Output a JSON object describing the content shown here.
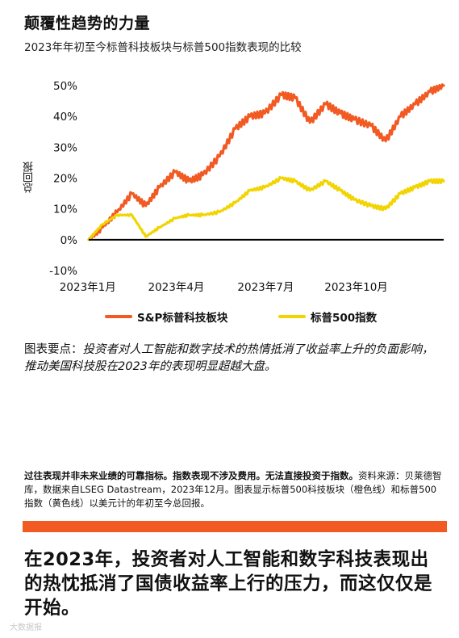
{
  "title": "颠覆性趋势的力量",
  "subtitle": "2023年年初至今标普科技板块与标普500指数表现的比较",
  "takeaway_label": "图表要点：",
  "takeaway_text": "投资者对人工智能和数字技术的热情抵消了收益率上升的负面影响，推动美国科技股在2023年的表现明显超越大盘。",
  "source_bold": "过往表现并非未来业绩的可靠指标。指数表现不涉及费用。无法直接投资于指数。",
  "source_text": "资料来源：贝莱德智库，数据来自LSEG Datastream，2023年12月。图表显示标普500科技板块（橙色线）和标普500指数（黄色线）以美元计的年初至今总回报。",
  "headline": "在2023年，投资者对人工智能和数字科技表现出的热忱抵消了国债收益率上行的压力，而这仅仅是开始。",
  "watermark": "大数据报",
  "colors": {
    "tech": "#f15a22",
    "sp500": "#f2d400",
    "accent_bar": "#f15a22",
    "zero_line": "#000000"
  },
  "chart_data": {
    "type": "line",
    "ylabel": "总回报",
    "xlabel": "",
    "ylim": [
      -10,
      50
    ],
    "yticks": [
      "-10%",
      "0%",
      "10%",
      "20%",
      "30%",
      "40%",
      "50%"
    ],
    "xticks": [
      "2023年1月",
      "2023年4月",
      "2023年7月",
      "2023年10月"
    ],
    "x": [
      "2023-01-02",
      "2023-01-16",
      "2023-01-31",
      "2023-02-15",
      "2023-03-01",
      "2023-03-15",
      "2023-03-31",
      "2023-04-14",
      "2023-04-28",
      "2023-05-15",
      "2023-05-31",
      "2023-06-15",
      "2023-06-30",
      "2023-07-17",
      "2023-07-31",
      "2023-08-15",
      "2023-08-31",
      "2023-09-15",
      "2023-09-29",
      "2023-10-16",
      "2023-10-31",
      "2023-11-15",
      "2023-11-30",
      "2023-12-15",
      "2023-12-29"
    ],
    "series": [
      {
        "name": "S&P标普科技板块",
        "color": "#f15a22",
        "values": [
          0,
          4,
          9,
          15,
          11,
          17,
          22,
          19,
          21,
          27,
          36,
          40,
          41,
          47,
          46,
          38,
          44,
          41,
          39,
          37,
          32,
          40,
          44,
          48,
          50
        ]
      },
      {
        "name": "标普500指数",
        "color": "#f2d400",
        "values": [
          0,
          5,
          8,
          8,
          1,
          4,
          7,
          8,
          8,
          9,
          12,
          16,
          17,
          20,
          19,
          16,
          19,
          16,
          13,
          11,
          10,
          15,
          17,
          19,
          19
        ]
      }
    ]
  }
}
